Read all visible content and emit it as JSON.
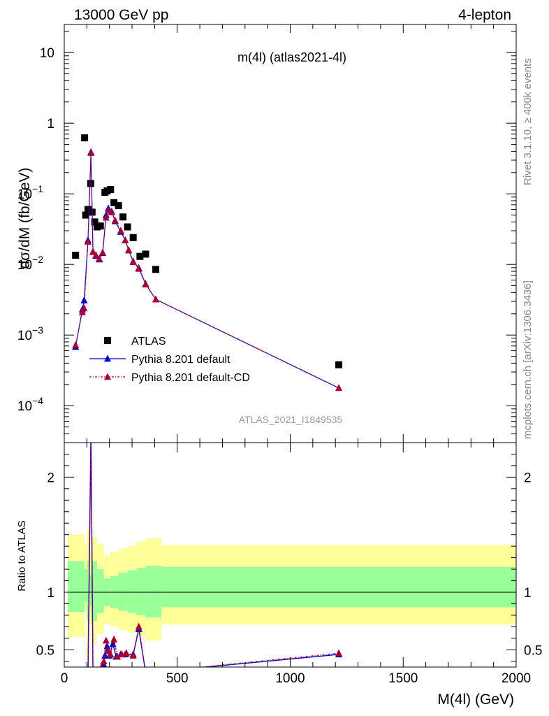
{
  "header": {
    "left": "13000 GeV pp",
    "right": "4-lepton"
  },
  "side_labels": {
    "rivet": "Rivet 3.1.10, ≥ 400k events",
    "mcplots": "mcplots.cern.ch [arXiv:1306.3436]"
  },
  "chart_data": [
    {
      "type": "scatter",
      "panel": "main",
      "title": "m(4l) (atlas2021-4l)",
      "watermark": "ATLAS_2021_I1849535",
      "ylabel": "dσ/dM (fb/GeV)",
      "xlabel": "M(4l) (GeV)",
      "xlim": [
        0,
        2000
      ],
      "ylim": [
        3e-05,
        25
      ],
      "yscale": "log",
      "xticks": [
        0,
        500,
        1000,
        1500,
        2000
      ],
      "yticks": [
        {
          "value": 0.0001,
          "mant": "10",
          "exp": "−4"
        },
        {
          "value": 0.001,
          "mant": "10",
          "exp": "−3"
        },
        {
          "value": 0.01,
          "mant": "10",
          "exp": "−2"
        },
        {
          "value": 0.1,
          "mant": "10",
          "exp": "−1"
        },
        {
          "value": 1,
          "mant": "1",
          "exp": ""
        },
        {
          "value": 10,
          "mant": "10",
          "exp": ""
        }
      ],
      "legend_position": "bottom-left",
      "series": [
        {
          "name": "ATLAS",
          "style": "square",
          "color": "#000000",
          "points": [
            [
              50,
              0.0135
            ],
            [
              90,
              0.62
            ],
            [
              95,
              0.05
            ],
            [
              105,
              0.06
            ],
            [
              117,
              0.14
            ],
            [
              123,
              0.055
            ],
            [
              135,
              0.04
            ],
            [
              145,
              0.034
            ],
            [
              160,
              0.035
            ],
            [
              180,
              0.105
            ],
            [
              190,
              0.11
            ],
            [
              205,
              0.115
            ],
            [
              220,
              0.075
            ],
            [
              240,
              0.068
            ],
            [
              260,
              0.047
            ],
            [
              280,
              0.034
            ],
            [
              305,
              0.024
            ],
            [
              335,
              0.013
            ],
            [
              360,
              0.014
            ],
            [
              405,
              0.0085
            ],
            [
              1215,
              0.00038
            ]
          ]
        },
        {
          "name": "Pythia 8.201 default",
          "style": "line-triangle",
          "color": "#0000cc",
          "points": [
            [
              50,
              0.00068
            ],
            [
              80,
              0.0023
            ],
            [
              88,
              0.0031
            ],
            [
              105,
              0.022
            ],
            [
              118,
              0.39
            ],
            [
              127,
              0.015
            ],
            [
              140,
              0.0133
            ],
            [
              155,
              0.0118
            ],
            [
              170,
              0.0145
            ],
            [
              185,
              0.05
            ],
            [
              195,
              0.062
            ],
            [
              210,
              0.056
            ],
            [
              225,
              0.041
            ],
            [
              250,
              0.029
            ],
            [
              270,
              0.022
            ],
            [
              285,
              0.016
            ],
            [
              305,
              0.011
            ],
            [
              330,
              0.0089
            ],
            [
              360,
              0.0053
            ],
            [
              405,
              0.0032
            ],
            [
              1215,
              0.000178
            ]
          ]
        },
        {
          "name": "Pythia 8.201 default-CD",
          "style": "dashed-triangle",
          "color": "#aa0033",
          "points": [
            [
              50,
              0.00072
            ],
            [
              80,
              0.0021
            ],
            [
              88,
              0.0024
            ],
            [
              105,
              0.021
            ],
            [
              118,
              0.38
            ],
            [
              127,
              0.0152
            ],
            [
              140,
              0.0136
            ],
            [
              155,
              0.0121
            ],
            [
              170,
              0.0148
            ],
            [
              185,
              0.046
            ],
            [
              195,
              0.058
            ],
            [
              210,
              0.055
            ],
            [
              225,
              0.042
            ],
            [
              250,
              0.03
            ],
            [
              270,
              0.022
            ],
            [
              285,
              0.0158
            ],
            [
              305,
              0.0108
            ],
            [
              330,
              0.0087
            ],
            [
              360,
              0.0052
            ],
            [
              405,
              0.0032
            ],
            [
              1215,
              0.000178
            ]
          ]
        }
      ]
    },
    {
      "type": "line",
      "panel": "ratio",
      "ylabel": "Ratio to ATLAS",
      "xlim": [
        0,
        2000
      ],
      "ylim": [
        0.35,
        2.3
      ],
      "xticks": [
        0,
        500,
        1000,
        1500,
        2000
      ],
      "yticks": [
        0.5,
        1,
        2
      ],
      "ytick_labels": [
        "0.5",
        "1",
        "2"
      ],
      "reference_line": 1,
      "bands": {
        "yellow_color": "#ffff99",
        "green_color": "#99ff99",
        "bins": [
          {
            "x0": 15,
            "x1": 90,
            "yellow": [
              0.61,
              1.5
            ],
            "green": [
              0.83,
              1.27
            ]
          },
          {
            "x0": 90,
            "x1": 100,
            "yellow": [
              0.84,
              1.42
            ],
            "green": [
              0.92,
              1.2
            ]
          },
          {
            "x0": 100,
            "x1": 112,
            "yellow": [
              0.4,
              1.55
            ],
            "green": [
              0.75,
              1.27
            ]
          },
          {
            "x0": 112,
            "x1": 122,
            "yellow": [
              0.72,
              1.35
            ],
            "green": [
              0.88,
              1.15
            ]
          },
          {
            "x0": 122,
            "x1": 145,
            "yellow": [
              0.55,
              1.48
            ],
            "green": [
              0.75,
              1.27
            ]
          },
          {
            "x0": 145,
            "x1": 175,
            "yellow": [
              0.64,
              1.42
            ],
            "green": [
              0.82,
              1.2
            ]
          },
          {
            "x0": 175,
            "x1": 205,
            "yellow": [
              0.72,
              1.32
            ],
            "green": [
              0.88,
              1.12
            ]
          },
          {
            "x0": 205,
            "x1": 240,
            "yellow": [
              0.7,
              1.35
            ],
            "green": [
              0.86,
              1.14
            ]
          },
          {
            "x0": 240,
            "x1": 280,
            "yellow": [
              0.67,
              1.38
            ],
            "green": [
              0.84,
              1.17
            ]
          },
          {
            "x0": 280,
            "x1": 320,
            "yellow": [
              0.65,
              1.4
            ],
            "green": [
              0.82,
              1.19
            ]
          },
          {
            "x0": 320,
            "x1": 360,
            "yellow": [
              0.62,
              1.44
            ],
            "green": [
              0.8,
              1.21
            ]
          },
          {
            "x0": 360,
            "x1": 430,
            "yellow": [
              0.58,
              1.47
            ],
            "green": [
              0.78,
              1.23
            ]
          },
          {
            "x0": 430,
            "x1": 2000,
            "yellow": [
              0.72,
              1.41
            ],
            "green": [
              0.87,
              1.22
            ]
          }
        ]
      },
      "series": [
        {
          "name": "Pythia 8.201 default",
          "color": "#0000cc",
          "style": "line-triangle",
          "points": [
            [
              105,
              0.3
            ],
            [
              118,
              2.4
            ],
            [
              127,
              0.3
            ],
            [
              165,
              0.34
            ],
            [
              175,
              0.37
            ],
            [
              180,
              0.45
            ],
            [
              190,
              0.53
            ],
            [
              200,
              0.45
            ],
            [
              215,
              0.55
            ],
            [
              230,
              0.44
            ],
            [
              250,
              0.46
            ],
            [
              270,
              0.46
            ],
            [
              305,
              0.46
            ],
            [
              330,
              0.68
            ],
            [
              360,
              0.3
            ],
            [
              1215,
              0.46
            ]
          ]
        },
        {
          "name": "Pythia 8.201 default-CD",
          "color": "#aa0033",
          "style": "dashed-triangle",
          "points": [
            [
              105,
              0.3
            ],
            [
              118,
              2.4
            ],
            [
              127,
              0.3
            ],
            [
              165,
              0.35
            ],
            [
              175,
              0.4
            ],
            [
              185,
              0.58
            ],
            [
              195,
              0.49
            ],
            [
              205,
              0.46
            ],
            [
              220,
              0.59
            ],
            [
              235,
              0.44
            ],
            [
              255,
              0.46
            ],
            [
              275,
              0.47
            ],
            [
              305,
              0.45
            ],
            [
              330,
              0.7
            ],
            [
              360,
              0.3
            ],
            [
              1215,
              0.47
            ]
          ]
        }
      ]
    }
  ]
}
